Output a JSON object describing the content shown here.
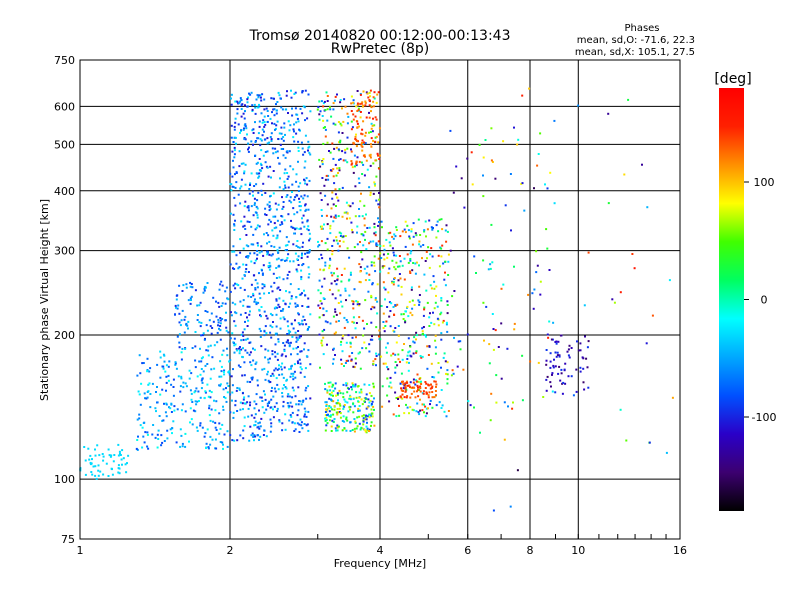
{
  "chart_data": {
    "type": "scatter",
    "title": "Tromsø 20140820 00:12:00-00:13:43",
    "subtitle": "RwPretec (8p)",
    "xlabel": "Frequency [MHz]",
    "ylabel": "Stationary phase Virtual Height [km]",
    "x_scale": "log",
    "y_scale": "log",
    "xlim": [
      1,
      16
    ],
    "ylim": [
      75,
      750
    ],
    "x_ticks": [
      1,
      2,
      4,
      6,
      8,
      10,
      16
    ],
    "y_ticks": [
      75,
      100,
      200,
      300,
      400,
      500,
      600,
      750
    ],
    "grid": true,
    "stats": {
      "heading": "Phases",
      "line_o": "mean, sd,O: -71.6, 22.3",
      "line_x": "mean, sd,X: 105.1, 27.5"
    },
    "colorbar": {
      "label": "[deg]",
      "range": [
        -180,
        180
      ],
      "ticks": [
        -100,
        0,
        100
      ],
      "colors": [
        "#000000",
        "#3c0070",
        "#2a00c8",
        "#0050ff",
        "#00a8ff",
        "#00ffff",
        "#00ff60",
        "#40ff00",
        "#ffff00",
        "#ff9000",
        "#ff2000",
        "#ff0000"
      ]
    },
    "clusters": [
      {
        "x": [
          1.0,
          1.25
        ],
        "y": [
          100,
          118
        ],
        "phase": [
          -30,
          -30
        ],
        "n": 60
      },
      {
        "x": [
          1.3,
          2.0
        ],
        "y": [
          115,
          185
        ],
        "phase": [
          -90,
          -10
        ],
        "n": 260
      },
      {
        "x": [
          1.55,
          2.0
        ],
        "y": [
          185,
          260
        ],
        "phase": [
          -100,
          -30
        ],
        "n": 120
      },
      {
        "x": [
          2.0,
          2.4
        ],
        "y": [
          120,
          650
        ],
        "phase": [
          -110,
          -20
        ],
        "n": 520
      },
      {
        "x": [
          2.4,
          2.9
        ],
        "y": [
          125,
          650
        ],
        "phase": [
          -110,
          -20
        ],
        "n": 560
      },
      {
        "x": [
          3.1,
          3.9
        ],
        "y": [
          125,
          160
        ],
        "phase": [
          -100,
          110
        ],
        "n": 230
      },
      {
        "x": [
          3.0,
          4.0
        ],
        "y": [
          170,
          650
        ],
        "phase": [
          -150,
          150
        ],
        "n": 480
      },
      {
        "x": [
          3.5,
          4.0
        ],
        "y": [
          450,
          650
        ],
        "phase": [
          100,
          160
        ],
        "n": 90
      },
      {
        "x": [
          4.0,
          5.5
        ],
        "y": [
          135,
          350
        ],
        "phase": [
          -150,
          150
        ],
        "n": 380
      },
      {
        "x": [
          4.4,
          5.2
        ],
        "y": [
          148,
          160
        ],
        "phase": [
          120,
          150
        ],
        "n": 70
      },
      {
        "x": [
          5.5,
          9.0
        ],
        "y": [
          140,
          550
        ],
        "phase": [
          -150,
          150
        ],
        "n": 90
      },
      {
        "x": [
          8.6,
          10.5
        ],
        "y": [
          150,
          200
        ],
        "phase": [
          -150,
          -90
        ],
        "n": 70
      },
      {
        "x": [
          6.0,
          15.5
        ],
        "y": [
          80,
          700
        ],
        "phase": [
          -160,
          160
        ],
        "n": 50
      }
    ]
  }
}
